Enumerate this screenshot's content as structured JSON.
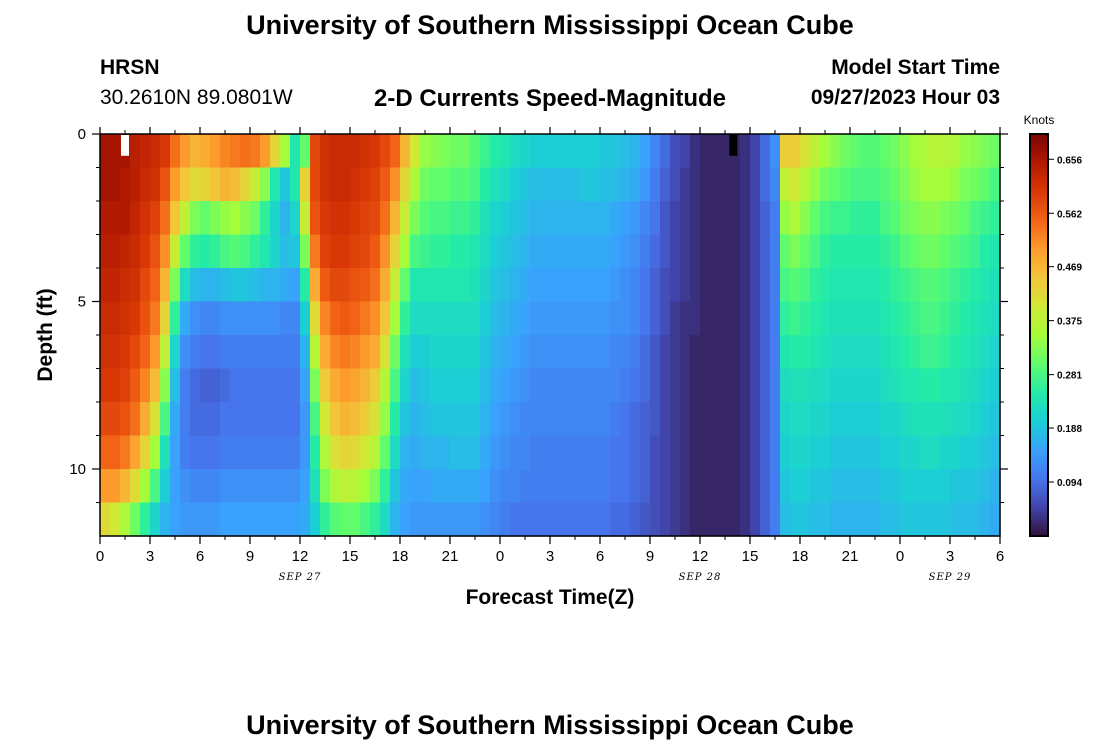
{
  "page": {
    "title": "University of Southern Mississippi Ocean Cube",
    "footer_title": "University of Southern Mississippi Ocean Cube",
    "station_id": "HRSN",
    "coords": "30.2610N  89.0801W",
    "plot_title": "2-D Currents Speed-Magnitude",
    "model_start_label": "Model Start Time",
    "model_start_value": "09/27/2023 Hour 03"
  },
  "chart_data": {
    "type": "heatmap",
    "title": "2-D Currents Speed-Magnitude",
    "xlabel": "Forecast Time(Z)",
    "ylabel": "Depth (ft)",
    "x_ticks": [
      "0",
      "3",
      "6",
      "9",
      "12",
      "15",
      "18",
      "21",
      "0",
      "3",
      "6",
      "9",
      "12",
      "15",
      "18",
      "21",
      "0",
      "3",
      "6"
    ],
    "date_labels": [
      {
        "text": "SEP 27",
        "hour": 12
      },
      {
        "text": "SEP 28",
        "hour": 36
      },
      {
        "text": "SEP 29",
        "hour": 51
      }
    ],
    "x_range_hours": [
      0,
      54
    ],
    "y_ticks": [
      "0",
      "5",
      "10"
    ],
    "y_range_ft": [
      0,
      12
    ],
    "colorbar": {
      "unit": "Knots",
      "tick_labels": [
        "0.656",
        "0.562",
        "0.469",
        "0.375",
        "0.281",
        "0.188",
        "0.094"
      ],
      "tick_values": [
        0.656,
        0.562,
        0.469,
        0.375,
        0.281,
        0.188,
        0.094
      ],
      "range": [
        0.0,
        0.7
      ]
    },
    "depth_rows_ft": [
      0.5,
      1.5,
      2.5,
      3.5,
      4.5,
      5.5,
      6.5,
      7.5,
      8.5,
      9.5,
      10.5,
      11.5
    ],
    "speed_knots": [
      [
        0.66,
        0.66,
        0.66,
        0.64,
        0.63,
        0.62,
        0.6,
        0.54,
        0.5,
        0.47,
        0.48,
        0.5,
        0.52,
        0.53,
        0.54,
        0.53,
        0.5,
        0.43,
        0.35,
        0.24,
        0.3,
        0.58,
        0.61,
        0.62,
        0.62,
        0.62,
        0.61,
        0.6,
        0.58,
        0.55,
        0.47,
        0.4,
        0.34,
        0.33,
        0.32,
        0.31,
        0.31,
        0.29,
        0.27,
        0.25,
        0.24,
        0.22,
        0.21,
        0.2,
        0.2,
        0.2,
        0.2,
        0.2,
        0.2,
        0.2,
        0.19,
        0.19,
        0.18,
        0.17,
        0.15,
        0.12,
        0.09,
        0.06,
        0.05,
        0.03,
        0.02,
        0.02,
        0.02,
        0.02,
        0.03,
        0.05,
        0.09,
        0.13,
        0.44,
        0.44,
        0.41,
        0.38,
        0.35,
        0.33,
        0.31,
        0.3,
        0.29,
        0.29,
        0.3,
        0.31,
        0.33,
        0.35,
        0.36,
        0.37,
        0.37,
        0.36,
        0.34,
        0.33,
        0.32,
        0.31
      ],
      [
        0.66,
        0.66,
        0.65,
        0.64,
        0.62,
        0.61,
        0.57,
        0.5,
        0.45,
        0.42,
        0.43,
        0.45,
        0.47,
        0.46,
        0.43,
        0.39,
        0.33,
        0.24,
        0.19,
        0.24,
        0.43,
        0.58,
        0.61,
        0.62,
        0.62,
        0.61,
        0.6,
        0.59,
        0.56,
        0.51,
        0.43,
        0.36,
        0.31,
        0.3,
        0.3,
        0.29,
        0.29,
        0.28,
        0.25,
        0.23,
        0.22,
        0.2,
        0.19,
        0.18,
        0.18,
        0.18,
        0.18,
        0.18,
        0.19,
        0.19,
        0.18,
        0.18,
        0.17,
        0.16,
        0.14,
        0.11,
        0.08,
        0.06,
        0.04,
        0.03,
        0.02,
        0.02,
        0.02,
        0.02,
        0.03,
        0.05,
        0.09,
        0.12,
        0.38,
        0.4,
        0.37,
        0.34,
        0.31,
        0.3,
        0.29,
        0.28,
        0.28,
        0.28,
        0.29,
        0.3,
        0.32,
        0.34,
        0.35,
        0.35,
        0.35,
        0.34,
        0.32,
        0.31,
        0.3,
        0.28
      ],
      [
        0.65,
        0.65,
        0.65,
        0.63,
        0.61,
        0.59,
        0.54,
        0.45,
        0.38,
        0.32,
        0.3,
        0.32,
        0.34,
        0.35,
        0.33,
        0.31,
        0.26,
        0.21,
        0.17,
        0.21,
        0.39,
        0.57,
        0.6,
        0.61,
        0.61,
        0.6,
        0.59,
        0.58,
        0.54,
        0.47,
        0.39,
        0.32,
        0.29,
        0.28,
        0.28,
        0.27,
        0.27,
        0.26,
        0.23,
        0.21,
        0.2,
        0.19,
        0.18,
        0.17,
        0.17,
        0.17,
        0.17,
        0.17,
        0.17,
        0.17,
        0.17,
        0.16,
        0.15,
        0.14,
        0.12,
        0.1,
        0.07,
        0.05,
        0.04,
        0.03,
        0.02,
        0.02,
        0.02,
        0.02,
        0.03,
        0.05,
        0.08,
        0.11,
        0.34,
        0.36,
        0.33,
        0.3,
        0.28,
        0.27,
        0.27,
        0.26,
        0.26,
        0.26,
        0.28,
        0.29,
        0.31,
        0.32,
        0.33,
        0.33,
        0.32,
        0.31,
        0.3,
        0.28,
        0.27,
        0.26
      ],
      [
        0.64,
        0.64,
        0.63,
        0.62,
        0.6,
        0.57,
        0.51,
        0.39,
        0.3,
        0.26,
        0.25,
        0.26,
        0.28,
        0.29,
        0.28,
        0.26,
        0.24,
        0.21,
        0.18,
        0.19,
        0.32,
        0.53,
        0.59,
        0.6,
        0.6,
        0.59,
        0.58,
        0.56,
        0.51,
        0.43,
        0.35,
        0.28,
        0.27,
        0.26,
        0.26,
        0.25,
        0.25,
        0.24,
        0.22,
        0.2,
        0.19,
        0.18,
        0.17,
        0.16,
        0.16,
        0.16,
        0.16,
        0.16,
        0.16,
        0.16,
        0.16,
        0.15,
        0.14,
        0.13,
        0.11,
        0.09,
        0.07,
        0.05,
        0.04,
        0.03,
        0.02,
        0.02,
        0.02,
        0.02,
        0.03,
        0.05,
        0.08,
        0.11,
        0.3,
        0.32,
        0.3,
        0.28,
        0.26,
        0.25,
        0.25,
        0.25,
        0.25,
        0.25,
        0.26,
        0.27,
        0.29,
        0.3,
        0.31,
        0.31,
        0.3,
        0.29,
        0.28,
        0.27,
        0.25,
        0.24
      ],
      [
        0.63,
        0.63,
        0.62,
        0.61,
        0.58,
        0.55,
        0.47,
        0.32,
        0.22,
        0.18,
        0.17,
        0.17,
        0.18,
        0.19,
        0.19,
        0.18,
        0.17,
        0.17,
        0.16,
        0.15,
        0.25,
        0.48,
        0.56,
        0.58,
        0.58,
        0.57,
        0.56,
        0.54,
        0.48,
        0.39,
        0.3,
        0.24,
        0.24,
        0.24,
        0.24,
        0.24,
        0.24,
        0.23,
        0.21,
        0.19,
        0.18,
        0.17,
        0.16,
        0.15,
        0.15,
        0.15,
        0.15,
        0.15,
        0.15,
        0.15,
        0.15,
        0.14,
        0.13,
        0.12,
        0.1,
        0.08,
        0.06,
        0.05,
        0.04,
        0.03,
        0.02,
        0.02,
        0.02,
        0.02,
        0.03,
        0.05,
        0.08,
        0.11,
        0.28,
        0.29,
        0.28,
        0.26,
        0.25,
        0.24,
        0.24,
        0.24,
        0.24,
        0.24,
        0.25,
        0.26,
        0.27,
        0.28,
        0.29,
        0.29,
        0.28,
        0.27,
        0.26,
        0.25,
        0.24,
        0.23
      ],
      [
        0.62,
        0.62,
        0.61,
        0.6,
        0.57,
        0.53,
        0.43,
        0.26,
        0.16,
        0.13,
        0.12,
        0.12,
        0.13,
        0.13,
        0.13,
        0.13,
        0.13,
        0.13,
        0.12,
        0.12,
        0.2,
        0.42,
        0.52,
        0.55,
        0.56,
        0.55,
        0.53,
        0.51,
        0.45,
        0.35,
        0.26,
        0.22,
        0.22,
        0.22,
        0.22,
        0.22,
        0.22,
        0.22,
        0.2,
        0.18,
        0.17,
        0.16,
        0.15,
        0.14,
        0.14,
        0.14,
        0.14,
        0.14,
        0.14,
        0.14,
        0.14,
        0.13,
        0.13,
        0.12,
        0.1,
        0.08,
        0.06,
        0.04,
        0.03,
        0.03,
        0.02,
        0.02,
        0.02,
        0.02,
        0.03,
        0.05,
        0.08,
        0.11,
        0.26,
        0.27,
        0.26,
        0.25,
        0.24,
        0.23,
        0.23,
        0.23,
        0.23,
        0.23,
        0.24,
        0.25,
        0.26,
        0.27,
        0.28,
        0.28,
        0.27,
        0.26,
        0.25,
        0.24,
        0.23,
        0.22
      ],
      [
        0.61,
        0.61,
        0.6,
        0.58,
        0.55,
        0.5,
        0.38,
        0.21,
        0.13,
        0.11,
        0.1,
        0.1,
        0.11,
        0.11,
        0.11,
        0.11,
        0.11,
        0.11,
        0.11,
        0.11,
        0.17,
        0.37,
        0.48,
        0.52,
        0.53,
        0.52,
        0.5,
        0.48,
        0.41,
        0.31,
        0.23,
        0.2,
        0.2,
        0.21,
        0.21,
        0.21,
        0.21,
        0.21,
        0.19,
        0.17,
        0.16,
        0.15,
        0.14,
        0.13,
        0.13,
        0.13,
        0.13,
        0.13,
        0.13,
        0.13,
        0.13,
        0.12,
        0.12,
        0.11,
        0.09,
        0.07,
        0.05,
        0.04,
        0.03,
        0.02,
        0.02,
        0.02,
        0.02,
        0.02,
        0.03,
        0.05,
        0.08,
        0.11,
        0.24,
        0.25,
        0.25,
        0.24,
        0.23,
        0.22,
        0.22,
        0.22,
        0.22,
        0.22,
        0.23,
        0.24,
        0.25,
        0.26,
        0.27,
        0.27,
        0.26,
        0.25,
        0.24,
        0.23,
        0.22,
        0.21
      ],
      [
        0.6,
        0.6,
        0.59,
        0.56,
        0.52,
        0.46,
        0.33,
        0.18,
        0.11,
        0.09,
        0.08,
        0.08,
        0.09,
        0.1,
        0.1,
        0.1,
        0.1,
        0.1,
        0.1,
        0.1,
        0.15,
        0.32,
        0.44,
        0.48,
        0.5,
        0.49,
        0.47,
        0.44,
        0.37,
        0.28,
        0.21,
        0.18,
        0.19,
        0.2,
        0.2,
        0.2,
        0.2,
        0.2,
        0.18,
        0.16,
        0.15,
        0.14,
        0.13,
        0.12,
        0.12,
        0.12,
        0.12,
        0.12,
        0.12,
        0.12,
        0.12,
        0.12,
        0.11,
        0.1,
        0.09,
        0.07,
        0.05,
        0.04,
        0.03,
        0.02,
        0.02,
        0.02,
        0.02,
        0.02,
        0.03,
        0.05,
        0.08,
        0.11,
        0.22,
        0.23,
        0.23,
        0.22,
        0.22,
        0.21,
        0.21,
        0.21,
        0.21,
        0.21,
        0.22,
        0.23,
        0.24,
        0.24,
        0.25,
        0.25,
        0.24,
        0.24,
        0.23,
        0.22,
        0.21,
        0.2
      ],
      [
        0.58,
        0.58,
        0.57,
        0.54,
        0.48,
        0.41,
        0.28,
        0.16,
        0.11,
        0.09,
        0.09,
        0.09,
        0.1,
        0.1,
        0.1,
        0.1,
        0.1,
        0.1,
        0.1,
        0.1,
        0.14,
        0.28,
        0.4,
        0.45,
        0.47,
        0.46,
        0.44,
        0.41,
        0.34,
        0.25,
        0.19,
        0.17,
        0.18,
        0.19,
        0.19,
        0.19,
        0.19,
        0.19,
        0.17,
        0.15,
        0.14,
        0.13,
        0.12,
        0.12,
        0.12,
        0.12,
        0.12,
        0.12,
        0.12,
        0.12,
        0.12,
        0.11,
        0.1,
        0.09,
        0.08,
        0.07,
        0.05,
        0.04,
        0.03,
        0.02,
        0.02,
        0.02,
        0.02,
        0.02,
        0.03,
        0.05,
        0.08,
        0.11,
        0.21,
        0.22,
        0.22,
        0.21,
        0.21,
        0.2,
        0.2,
        0.2,
        0.2,
        0.2,
        0.21,
        0.21,
        0.22,
        0.23,
        0.23,
        0.23,
        0.23,
        0.22,
        0.22,
        0.21,
        0.2,
        0.19
      ],
      [
        0.55,
        0.55,
        0.53,
        0.49,
        0.43,
        0.35,
        0.23,
        0.15,
        0.11,
        0.1,
        0.1,
        0.1,
        0.11,
        0.11,
        0.11,
        0.11,
        0.11,
        0.11,
        0.11,
        0.11,
        0.14,
        0.25,
        0.36,
        0.41,
        0.43,
        0.42,
        0.4,
        0.37,
        0.3,
        0.22,
        0.17,
        0.16,
        0.17,
        0.17,
        0.17,
        0.18,
        0.18,
        0.18,
        0.16,
        0.14,
        0.13,
        0.12,
        0.12,
        0.11,
        0.11,
        0.11,
        0.11,
        0.11,
        0.11,
        0.11,
        0.11,
        0.1,
        0.1,
        0.09,
        0.08,
        0.06,
        0.05,
        0.04,
        0.03,
        0.02,
        0.02,
        0.02,
        0.02,
        0.02,
        0.03,
        0.05,
        0.08,
        0.11,
        0.2,
        0.21,
        0.21,
        0.2,
        0.2,
        0.19,
        0.19,
        0.19,
        0.19,
        0.19,
        0.2,
        0.2,
        0.21,
        0.21,
        0.22,
        0.22,
        0.21,
        0.21,
        0.2,
        0.2,
        0.19,
        0.18
      ],
      [
        0.5,
        0.5,
        0.47,
        0.42,
        0.35,
        0.28,
        0.2,
        0.15,
        0.13,
        0.12,
        0.12,
        0.12,
        0.13,
        0.13,
        0.13,
        0.13,
        0.13,
        0.13,
        0.13,
        0.13,
        0.15,
        0.23,
        0.32,
        0.36,
        0.38,
        0.37,
        0.35,
        0.32,
        0.26,
        0.19,
        0.16,
        0.15,
        0.15,
        0.16,
        0.16,
        0.16,
        0.16,
        0.16,
        0.15,
        0.13,
        0.12,
        0.12,
        0.11,
        0.11,
        0.11,
        0.11,
        0.11,
        0.11,
        0.11,
        0.11,
        0.11,
        0.1,
        0.1,
        0.09,
        0.08,
        0.06,
        0.05,
        0.04,
        0.03,
        0.02,
        0.02,
        0.02,
        0.02,
        0.02,
        0.03,
        0.05,
        0.08,
        0.11,
        0.19,
        0.2,
        0.2,
        0.19,
        0.19,
        0.18,
        0.18,
        0.18,
        0.18,
        0.18,
        0.19,
        0.19,
        0.2,
        0.2,
        0.2,
        0.2,
        0.2,
        0.19,
        0.19,
        0.19,
        0.18,
        0.17
      ],
      [
        0.42,
        0.4,
        0.36,
        0.31,
        0.26,
        0.21,
        0.17,
        0.15,
        0.14,
        0.14,
        0.14,
        0.14,
        0.15,
        0.15,
        0.15,
        0.15,
        0.15,
        0.15,
        0.15,
        0.15,
        0.16,
        0.2,
        0.26,
        0.29,
        0.3,
        0.3,
        0.28,
        0.26,
        0.22,
        0.17,
        0.15,
        0.14,
        0.14,
        0.14,
        0.14,
        0.14,
        0.14,
        0.14,
        0.13,
        0.12,
        0.11,
        0.1,
        0.1,
        0.1,
        0.1,
        0.1,
        0.1,
        0.1,
        0.1,
        0.1,
        0.1,
        0.09,
        0.09,
        0.08,
        0.07,
        0.06,
        0.05,
        0.04,
        0.03,
        0.02,
        0.02,
        0.02,
        0.02,
        0.02,
        0.03,
        0.05,
        0.08,
        0.11,
        0.18,
        0.19,
        0.19,
        0.18,
        0.18,
        0.17,
        0.17,
        0.17,
        0.17,
        0.17,
        0.18,
        0.18,
        0.19,
        0.19,
        0.19,
        0.19,
        0.19,
        0.18,
        0.18,
        0.18,
        0.17,
        0.16
      ]
    ],
    "markers": [
      {
        "hour": 1.5,
        "depth_top_ft": 0.0,
        "depth_bottom_ft": 0.5,
        "color": "#ffffff"
      },
      {
        "hour": 38.0,
        "depth_top_ft": 0.0,
        "depth_bottom_ft": 0.5,
        "color": "#000000"
      }
    ],
    "colormap_stops": [
      "#30123b",
      "#4145ab",
      "#4675ed",
      "#39a2fc",
      "#1bcfd4",
      "#24eca6",
      "#61fc6c",
      "#a4fc3b",
      "#d1e834",
      "#f3c63a",
      "#fe9b2d",
      "#f36315",
      "#d93806",
      "#b11901",
      "#7a0403"
    ]
  }
}
